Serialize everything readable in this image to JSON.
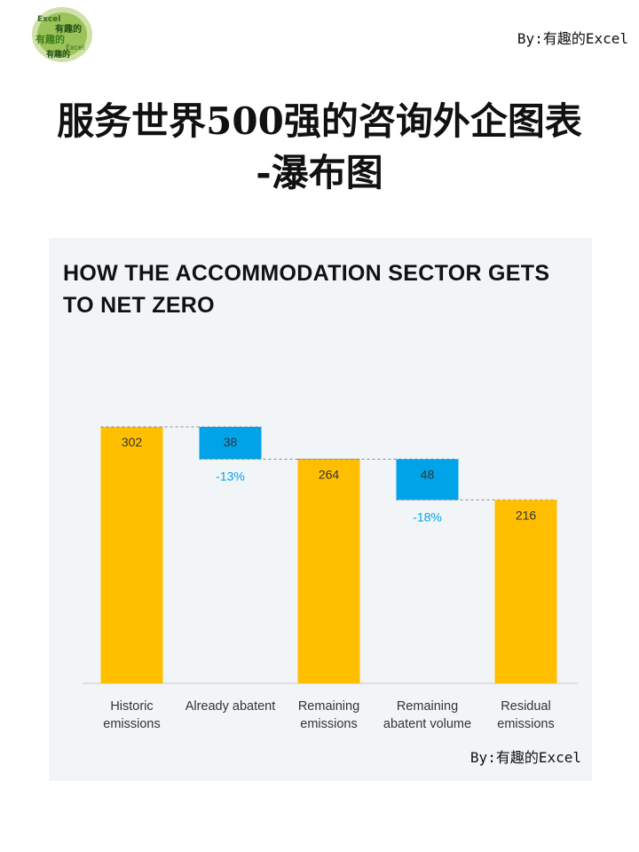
{
  "header": {
    "byline": "By:有趣的Excel",
    "title_line1": "服务世界500强的咨询外企图表",
    "title_line2": "-瀑布图"
  },
  "logo": {
    "icon": "excel-word-cloud-logo",
    "text": "有趣的 Excel"
  },
  "card": {
    "byline": "By:有趣的Excel"
  },
  "colors": {
    "total": "#ffbf00",
    "decrease": "#00a2e8",
    "percent_label": "#00a2e8",
    "connector": "#888888",
    "card_bg": "#f2f5f8"
  },
  "chart_data": {
    "type": "bar",
    "subtype": "waterfall",
    "title": "HOW THE ACCOMMODATION SECTOR GETS TO NET ZERO",
    "categories": [
      [
        "Historic",
        "emissions"
      ],
      [
        "Already abatent"
      ],
      [
        "Remaining",
        "emissions"
      ],
      [
        "Remaining",
        "abatent volume"
      ],
      [
        "Residual",
        "emissions"
      ]
    ],
    "values": [
      302,
      -38,
      264,
      -48,
      216
    ],
    "kinds": [
      "total",
      "decrease",
      "total",
      "decrease",
      "total"
    ],
    "value_labels": [
      "302",
      "38",
      "264",
      "48",
      "216"
    ],
    "percent_labels": [
      "",
      "-13%",
      "",
      "-18%",
      ""
    ],
    "ylim": [
      0,
      302
    ],
    "grid": false,
    "legend": "none",
    "connectors": true
  }
}
